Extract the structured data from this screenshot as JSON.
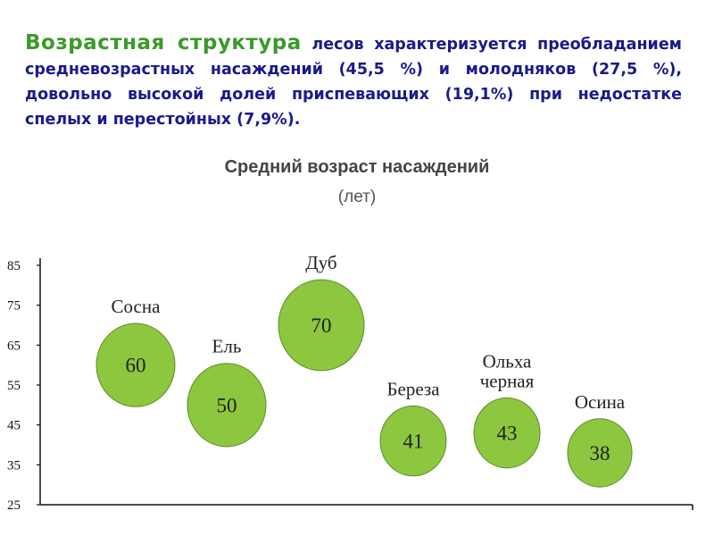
{
  "intro": {
    "lead": "Возрастная структура",
    "rest": " лесов характеризуется преобладанием средневозрастных насаждений (45,5 %) и молодняков (27,5 %), довольно высокой долей приспевающих (19,1%) при недостатке спелых и перестойных (7,9%)."
  },
  "chart_data": {
    "type": "scatter",
    "title": "Средний возраст насаждений",
    "subtitle": "(лет)",
    "ylim": [
      25,
      85
    ],
    "yticks": [
      "85",
      "75",
      "65",
      "55",
      "45",
      "35",
      "25"
    ],
    "grid": false,
    "points": [
      {
        "category_lines": [
          "Сосна"
        ],
        "value": 60,
        "label": "60"
      },
      {
        "category_lines": [
          "Ель"
        ],
        "value": 50,
        "label": "50"
      },
      {
        "category_lines": [
          "Дуб"
        ],
        "value": 70,
        "label": "70"
      },
      {
        "category_lines": [
          "Береза"
        ],
        "value": 41,
        "label": "41"
      },
      {
        "category_lines": [
          "Ольха",
          "черная"
        ],
        "value": 43,
        "label": "43"
      },
      {
        "category_lines": [
          "Осина"
        ],
        "value": 38,
        "label": "38"
      }
    ],
    "colors": {
      "bubble_fill": "#8dc63f",
      "bubble_stroke": "#5d8f27",
      "axis": "#111111"
    }
  }
}
